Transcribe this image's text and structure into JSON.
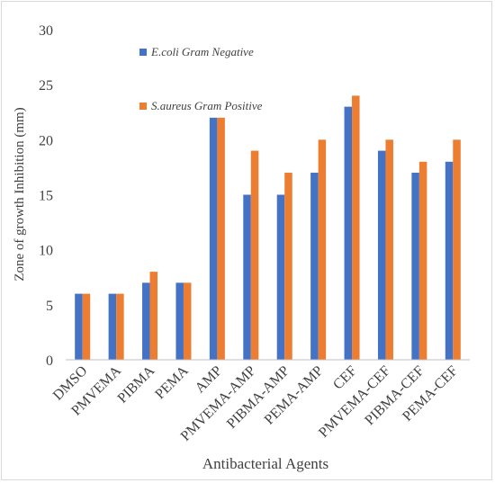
{
  "chart_data": {
    "type": "bar",
    "title": "",
    "xlabel": "Antibacterial Agents",
    "ylabel": "Zone of growth Inhibition (mm)",
    "ylim": [
      0,
      30
    ],
    "yticks": [
      0,
      5,
      10,
      15,
      20,
      25,
      30
    ],
    "grid": false,
    "legend_position": "top-left",
    "categories": [
      "DMSO",
      "PMVEMA",
      "PIBMA",
      "PEMA",
      "AMP",
      "PMVEMA-AMP",
      "PIBMA-AMP",
      "PEMA-AMP",
      "CEF",
      "PMVEMA-CEF",
      "PIBMA-CEF",
      "PEMA-CEF"
    ],
    "series": [
      {
        "name": "E.coli Gram Negative",
        "color": "#4472c4",
        "values": [
          6,
          6,
          7,
          7,
          22,
          15,
          15,
          17,
          23,
          19,
          17,
          18
        ]
      },
      {
        "name": "S.aureus Gram Positive",
        "color": "#ed7d31",
        "values": [
          6,
          6,
          8,
          7,
          22,
          19,
          17,
          20,
          24,
          20,
          18,
          20
        ]
      }
    ]
  }
}
